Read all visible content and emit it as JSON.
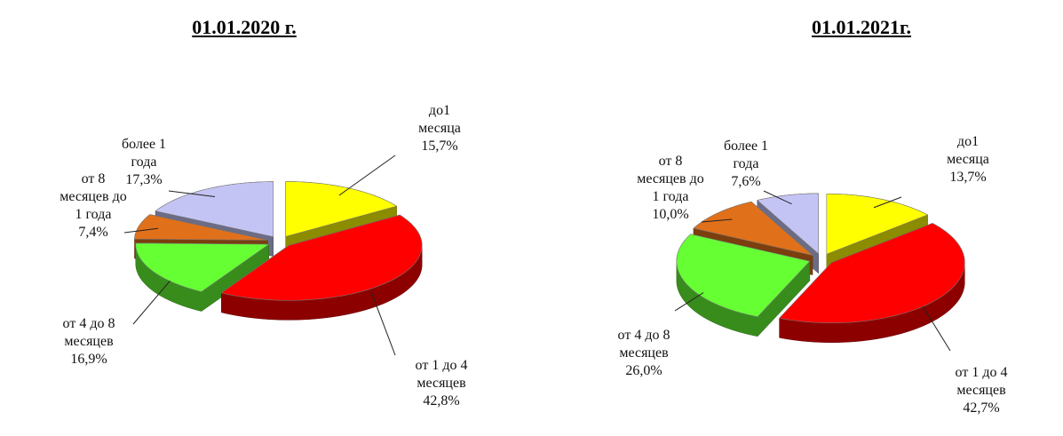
{
  "chart_data": [
    {
      "type": "pie",
      "title": "01.01.2020 г.",
      "categories": [
        "до1 месяца",
        "от 1 до 4 месяцев",
        "от 4 до 8 месяцев",
        "от 8 месяцев до 1 года",
        "более 1 года"
      ],
      "values": [
        15.7,
        42.8,
        16.9,
        7.4,
        17.3
      ],
      "value_labels": [
        "15,7%",
        "42,8%",
        "16,9%",
        "7,4%",
        "17,3%"
      ],
      "colors": [
        "#ffff00",
        "#ff0000",
        "#66ff33",
        "#e0701a",
        "#c4c4f4"
      ]
    },
    {
      "type": "pie",
      "title": "01.01.2021г.",
      "categories": [
        "до1 месяца",
        "от 1 до 4 месяцев",
        "от 4 до 8 месяцев",
        "от 8 месяцев до 1 года",
        "более 1 года"
      ],
      "values": [
        13.7,
        42.7,
        26.0,
        10.0,
        7.6
      ],
      "value_labels": [
        "13,7%",
        "42,7%",
        "26,0%",
        "10,0%",
        "7,6%"
      ],
      "colors": [
        "#ffff00",
        "#ff0000",
        "#66ff33",
        "#e0701a",
        "#c4c4f4"
      ]
    }
  ]
}
